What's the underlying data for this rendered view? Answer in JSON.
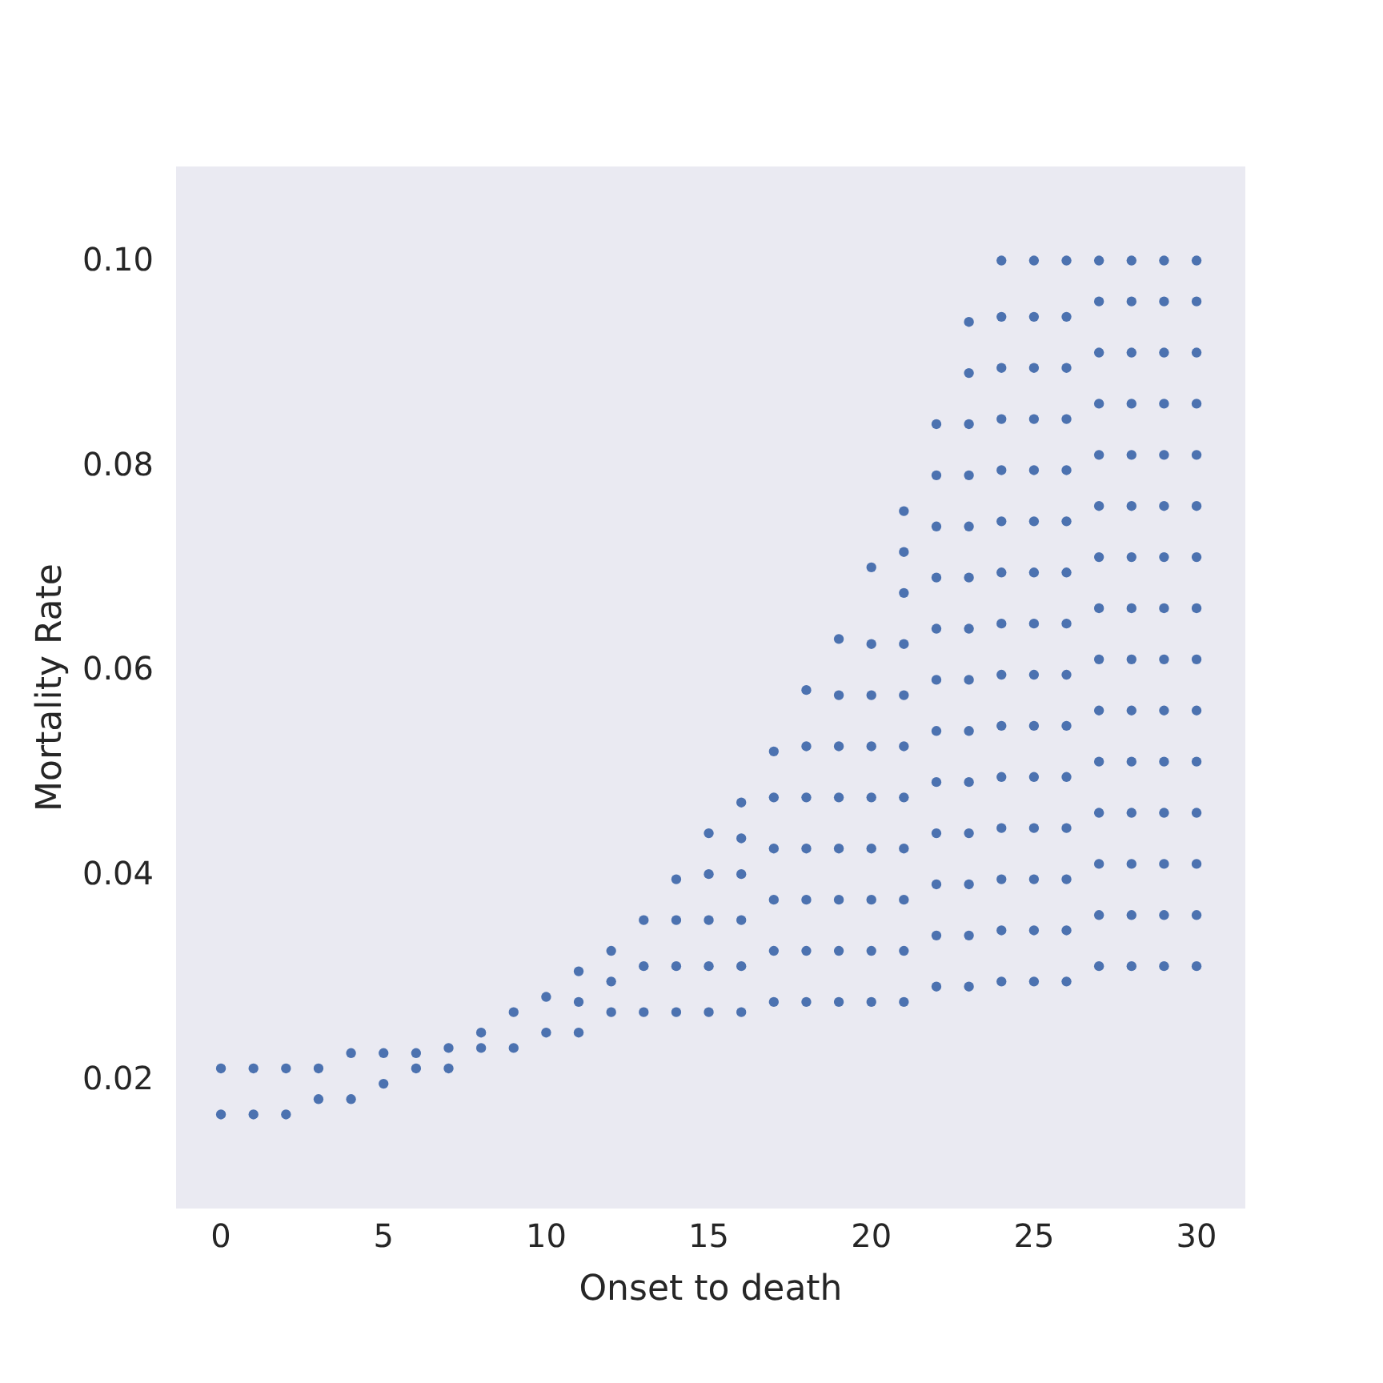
{
  "chart_data": {
    "type": "scatter",
    "xlabel": "Onset to death",
    "ylabel": "Mortality Rate",
    "marker": "circle",
    "grid": false,
    "xlim": [
      -1.38,
      31.5
    ],
    "ylim": [
      0.0073,
      0.1092
    ],
    "xticks": [
      0,
      5,
      10,
      15,
      20,
      25,
      30
    ],
    "yticks": [
      {
        "value": 0.02,
        "label": "0.02"
      },
      {
        "value": 0.04,
        "label": "0.04"
      },
      {
        "value": 0.06,
        "label": "0.06"
      },
      {
        "value": 0.08,
        "label": "0.08"
      },
      {
        "value": 0.1,
        "label": "0.10"
      }
    ],
    "series": [
      {
        "color": "#4c72b0",
        "x": [
          0,
          0,
          1,
          1,
          2,
          2,
          3,
          3,
          4,
          4,
          5,
          5,
          6,
          6,
          7,
          7,
          8,
          8,
          9,
          9,
          10,
          10,
          11,
          11,
          11,
          12,
          12,
          12,
          13,
          13,
          13,
          14,
          14,
          14,
          14,
          15,
          15,
          15,
          15,
          15,
          16,
          16,
          16,
          16,
          16,
          16,
          17,
          17,
          17,
          17,
          17,
          17,
          18,
          18,
          18,
          18,
          18,
          18,
          18,
          19,
          19,
          19,
          19,
          19,
          19,
          19,
          19,
          20,
          20,
          20,
          20,
          20,
          20,
          20,
          20,
          20,
          21,
          21,
          21,
          21,
          21,
          21,
          21,
          21,
          21,
          21,
          21,
          22,
          22,
          22,
          22,
          22,
          22,
          22,
          22,
          22,
          22,
          22,
          22,
          23,
          23,
          23,
          23,
          23,
          23,
          23,
          23,
          23,
          23,
          23,
          23,
          23,
          23,
          24,
          24,
          24,
          24,
          24,
          24,
          24,
          24,
          24,
          24,
          24,
          24,
          24,
          24,
          24,
          25,
          25,
          25,
          25,
          25,
          25,
          25,
          25,
          25,
          25,
          25,
          25,
          25,
          25,
          25,
          26,
          26,
          26,
          26,
          26,
          26,
          26,
          26,
          26,
          26,
          26,
          26,
          26,
          26,
          26,
          27,
          27,
          27,
          27,
          27,
          27,
          27,
          27,
          27,
          27,
          27,
          27,
          27,
          27,
          27,
          28,
          28,
          28,
          28,
          28,
          28,
          28,
          28,
          28,
          28,
          28,
          28,
          28,
          28,
          28,
          29,
          29,
          29,
          29,
          29,
          29,
          29,
          29,
          29,
          29,
          29,
          29,
          29,
          29,
          29,
          30,
          30,
          30,
          30,
          30,
          30,
          30,
          30,
          30,
          30,
          30,
          30,
          30,
          30,
          30
        ],
        "values": [
          0.0165,
          0.021,
          0.0165,
          0.021,
          0.0165,
          0.021,
          0.018,
          0.021,
          0.018,
          0.0225,
          0.0195,
          0.0225,
          0.021,
          0.0225,
          0.021,
          0.023,
          0.023,
          0.0245,
          0.023,
          0.0265,
          0.0245,
          0.028,
          0.0245,
          0.0275,
          0.0305,
          0.0265,
          0.0295,
          0.0325,
          0.0265,
          0.031,
          0.0355,
          0.0265,
          0.031,
          0.0355,
          0.0395,
          0.0265,
          0.031,
          0.0355,
          0.04,
          0.044,
          0.0265,
          0.031,
          0.0355,
          0.04,
          0.0435,
          0.047,
          0.0275,
          0.0325,
          0.0375,
          0.0425,
          0.0475,
          0.052,
          0.0275,
          0.0325,
          0.0375,
          0.0425,
          0.0475,
          0.0525,
          0.058,
          0.0275,
          0.0325,
          0.0375,
          0.0425,
          0.0475,
          0.0525,
          0.0575,
          0.063,
          0.0275,
          0.0325,
          0.0375,
          0.0425,
          0.0475,
          0.0525,
          0.0575,
          0.0625,
          0.07,
          0.0275,
          0.0325,
          0.0375,
          0.0425,
          0.0475,
          0.0525,
          0.0575,
          0.0625,
          0.0675,
          0.0715,
          0.0755,
          0.029,
          0.034,
          0.039,
          0.044,
          0.049,
          0.054,
          0.059,
          0.064,
          0.069,
          0.074,
          0.079,
          0.084,
          0.029,
          0.034,
          0.039,
          0.044,
          0.049,
          0.054,
          0.059,
          0.064,
          0.069,
          0.074,
          0.079,
          0.084,
          0.089,
          0.094,
          0.0295,
          0.0345,
          0.0395,
          0.0445,
          0.0495,
          0.0545,
          0.0595,
          0.0645,
          0.0695,
          0.0745,
          0.0795,
          0.0845,
          0.0895,
          0.0945,
          0.1,
          0.0295,
          0.0345,
          0.0395,
          0.0445,
          0.0495,
          0.0545,
          0.0595,
          0.0645,
          0.0695,
          0.0745,
          0.0795,
          0.0845,
          0.0895,
          0.0945,
          0.1,
          0.0295,
          0.0345,
          0.0395,
          0.0445,
          0.0495,
          0.0545,
          0.0595,
          0.0645,
          0.0695,
          0.0745,
          0.0795,
          0.0845,
          0.0895,
          0.0945,
          0.1,
          0.031,
          0.036,
          0.041,
          0.046,
          0.051,
          0.056,
          0.061,
          0.066,
          0.071,
          0.076,
          0.081,
          0.086,
          0.091,
          0.096,
          0.1,
          0.031,
          0.036,
          0.041,
          0.046,
          0.051,
          0.056,
          0.061,
          0.066,
          0.071,
          0.076,
          0.081,
          0.086,
          0.091,
          0.096,
          0.1,
          0.031,
          0.036,
          0.041,
          0.046,
          0.051,
          0.056,
          0.061,
          0.066,
          0.071,
          0.076,
          0.081,
          0.086,
          0.091,
          0.096,
          0.1,
          0.031,
          0.036,
          0.041,
          0.046,
          0.051,
          0.056,
          0.061,
          0.066,
          0.071,
          0.076,
          0.081,
          0.086,
          0.091,
          0.096,
          0.1
        ]
      }
    ]
  }
}
